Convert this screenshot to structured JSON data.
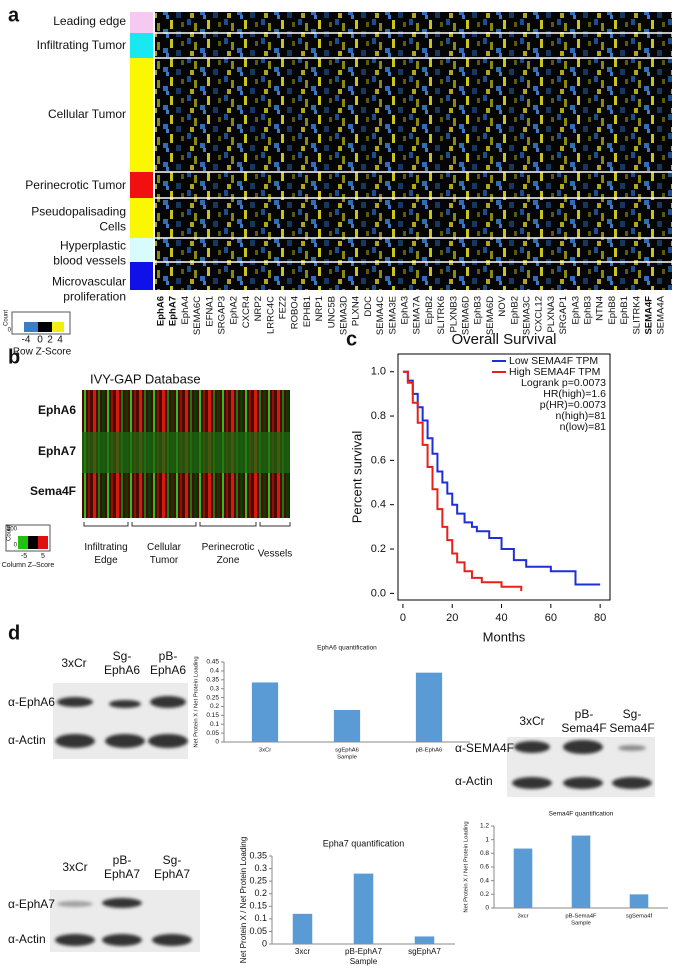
{
  "panel_a": {
    "label": "a",
    "regions": [
      [
        "Leading edge"
      ],
      [
        "Infiltrating Tumor"
      ],
      [
        "Cellular Tumor"
      ],
      [
        "Perinecrotic Tumor"
      ],
      [
        "Pseudopalisading",
        "Cells"
      ],
      [
        "Hyperplastic",
        "blood vessels"
      ],
      [
        "Microvascular",
        "proliferation"
      ]
    ],
    "genes": [
      {
        "label": "EphA6",
        "color": "#e00000"
      },
      {
        "label": "EphA7",
        "color": "#e00000"
      },
      "EphA4",
      "SEMA6C",
      "EFNA1",
      "SRGAP3",
      "EphA2",
      "CXCR4",
      "NRP2",
      "LRRC4C",
      "FEZ2",
      "ROBO4",
      "EPHB1",
      "NRP1",
      "UNC5B",
      "SEMA3D",
      "PLXN4",
      "DDC",
      "SEMA4C",
      "SEMA3E",
      "EphA3",
      "SEMA7A",
      "EphB2",
      "SLITRK6",
      "PLXNB3",
      "SEMA6D",
      "EphB3",
      "SEMA6D",
      "NOV",
      "EphB2",
      "SEMA3C",
      "CXCL12",
      "PLXNA3",
      "SRGAP1",
      "EphA3",
      "EphB3",
      "NTN4",
      "EphB8",
      "EphB1",
      "SLITRK4",
      {
        "label": "SEMA4F",
        "color": "#e00000"
      },
      "SEMA4A"
    ],
    "key": {
      "count": "Count",
      "count_tick": 0,
      "ticks": [
        -4,
        0,
        2,
        4
      ],
      "title": "Row Z-Score"
    }
  },
  "panel_b": {
    "label": "b",
    "title": "IVY-GAP Database",
    "rows": [
      "EphA6",
      "EphA7",
      "Sema4F"
    ],
    "groups": [
      [
        "Infiltrating",
        "Edge"
      ],
      [
        "Cellular",
        "Tumor"
      ],
      [
        "Perinecrotic",
        "Zone"
      ],
      [
        "Vessels"
      ]
    ],
    "key": {
      "count": "Count",
      "count_ticks": [
        300,
        0
      ],
      "ticks": [
        -5,
        5
      ],
      "title": "Column Z–Score"
    }
  },
  "panel_c": {
    "label": "c"
  },
  "panel_d": {
    "label": "d",
    "blot_a6": {
      "lanes": [
        [
          "3xCr"
        ],
        [
          "Sg-",
          "EphA6"
        ],
        [
          "pB-",
          "EphA6"
        ]
      ],
      "rows": [
        "α-EphA6",
        "α-Actin"
      ]
    },
    "blot_s4f": {
      "lanes": [
        [
          "3xCr"
        ],
        [
          "pB-",
          "Sema4F"
        ],
        [
          "Sg-",
          "Sema4F"
        ]
      ],
      "rows": [
        "α-SEMA4F",
        "α-Actin"
      ]
    },
    "blot_a7": {
      "lanes": [
        [
          "3xCr"
        ],
        [
          "pB-",
          "EphA7"
        ],
        [
          "Sg-",
          "EphA7"
        ]
      ],
      "rows": [
        "α-EphA7",
        "α-Actin"
      ]
    }
  },
  "chart_data": [
    {
      "type": "line",
      "title": "Overall Survival",
      "xlabel": "Months",
      "ylabel": "Percent survival",
      "xlim": [
        -2,
        84
      ],
      "xticks": [
        0,
        20,
        40,
        60,
        80
      ],
      "ylim": [
        -0.03,
        1.08
      ],
      "yticks": [
        {
          "value": 0,
          "label": "0.0"
        },
        0.2,
        0.4,
        0.6,
        0.8,
        {
          "value": 1,
          "label": "1.0"
        }
      ],
      "series": [
        {
          "name": "Low SEMA4F TPM",
          "color": "#1f2fd8",
          "x": [
            0,
            2,
            4,
            6,
            8,
            10,
            12,
            14,
            16,
            18,
            20,
            22,
            25,
            28,
            30,
            35,
            40,
            45,
            50,
            60,
            70,
            80
          ],
          "values": [
            1,
            0.96,
            0.9,
            0.84,
            0.78,
            0.7,
            0.63,
            0.55,
            0.5,
            0.45,
            0.4,
            0.36,
            0.32,
            0.3,
            0.28,
            0.25,
            0.2,
            0.15,
            0.12,
            0.1,
            0.04,
            0.04
          ]
        },
        {
          "name": "High SEMA4F TPM",
          "color": "#e8201a",
          "x": [
            0,
            2,
            4,
            6,
            8,
            10,
            12,
            14,
            16,
            18,
            20,
            22,
            25,
            28,
            32,
            40,
            48
          ],
          "values": [
            1,
            0.95,
            0.86,
            0.77,
            0.67,
            0.57,
            0.47,
            0.38,
            0.3,
            0.24,
            0.18,
            0.14,
            0.1,
            0.07,
            0.05,
            0.03,
            0.01
          ]
        }
      ],
      "annotations": [
        "Logrank p=0.0073",
        "HR(high)=1.6",
        "p(HR)=0.0073",
        "n(high)=81",
        "n(low)=81"
      ]
    },
    {
      "type": "bar",
      "title": "EphA6 quantification",
      "categories": [
        "3xCr",
        "sgEphA6",
        "pB-EphA6"
      ],
      "values": [
        0.335,
        0.18,
        0.39
      ],
      "color": "#5b9bd5",
      "ylim": [
        0,
        0.45
      ],
      "yticks": [
        0,
        0.05,
        0.1,
        0.15,
        0.2,
        0.25,
        0.3,
        0.35,
        0.4,
        0.45
      ],
      "xlabel": "Sample",
      "ylabel": "Net Protein X / Net Protein Loading"
    },
    {
      "type": "bar",
      "title": "Sema4F quantification",
      "categories": [
        "3xcr",
        "pB-Sema4F",
        "sgSema4f"
      ],
      "values": [
        0.87,
        1.06,
        0.2
      ],
      "color": "#5b9bd5",
      "ylim": [
        0,
        1.2
      ],
      "yticks": [
        0,
        0.2,
        0.4,
        0.6,
        0.8,
        1,
        1.2
      ],
      "xlabel": "Sample",
      "ylabel": "Net Protein X / Net Protein Loading"
    },
    {
      "type": "bar",
      "title": "Epha7 quantification",
      "categories": [
        "3xcr",
        "pB-EphA7",
        "sgEphA7"
      ],
      "values": [
        0.12,
        0.28,
        0.03
      ],
      "color": "#5b9bd5",
      "ylim": [
        0,
        0.35
      ],
      "yticks": [
        0,
        0.05,
        0.1,
        0.15,
        0.2,
        0.25,
        0.3,
        0.35
      ],
      "xlabel": "Sample",
      "ylabel": "Net Protein X / Net Protein Loading"
    }
  ]
}
